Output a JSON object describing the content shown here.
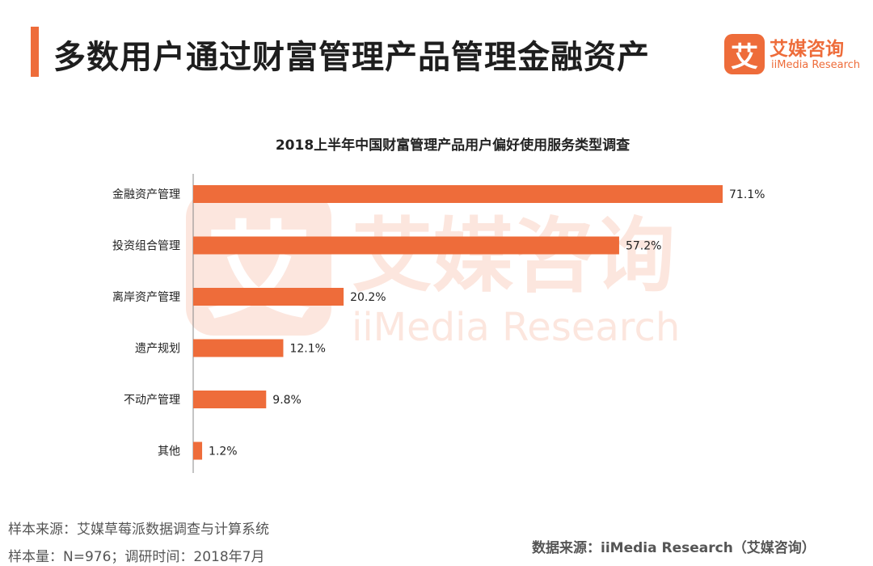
{
  "header": {
    "title": "多数用户通过财富管理产品管理金融资产",
    "accent_color": "#ee6c3a"
  },
  "logo": {
    "mark": "艾",
    "name_cn": "艾媒咨询",
    "name_en": "iiMedia Research"
  },
  "watermark": {
    "mark": "艾",
    "name_cn": "艾媒咨询",
    "name_en": "iiMedia Research"
  },
  "chart_data": {
    "type": "bar",
    "orientation": "horizontal",
    "title": "2018上半年中国财富管理产品用户偏好使用服务类型调查",
    "categories": [
      "金融资产管理",
      "投资组合管理",
      "离岸资产管理",
      "遗产规划",
      "不动产管理",
      "其他"
    ],
    "values": [
      71.1,
      57.2,
      20.2,
      12.1,
      9.8,
      1.2
    ],
    "value_labels": [
      "71.1%",
      "57.2%",
      "20.2%",
      "12.1%",
      "9.8%",
      "1.2%"
    ],
    "unit": "%",
    "xlim": [
      0,
      71.1
    ],
    "grid": false,
    "bar_color": "#ee6c3a"
  },
  "footer": {
    "sample_source": "样本来源：艾媒草莓派数据调查与计算系统",
    "sample_size": "样本量：N=976；调研时间：2018年7月",
    "data_source": "数据来源：iiMedia Research（艾媒咨询）"
  }
}
